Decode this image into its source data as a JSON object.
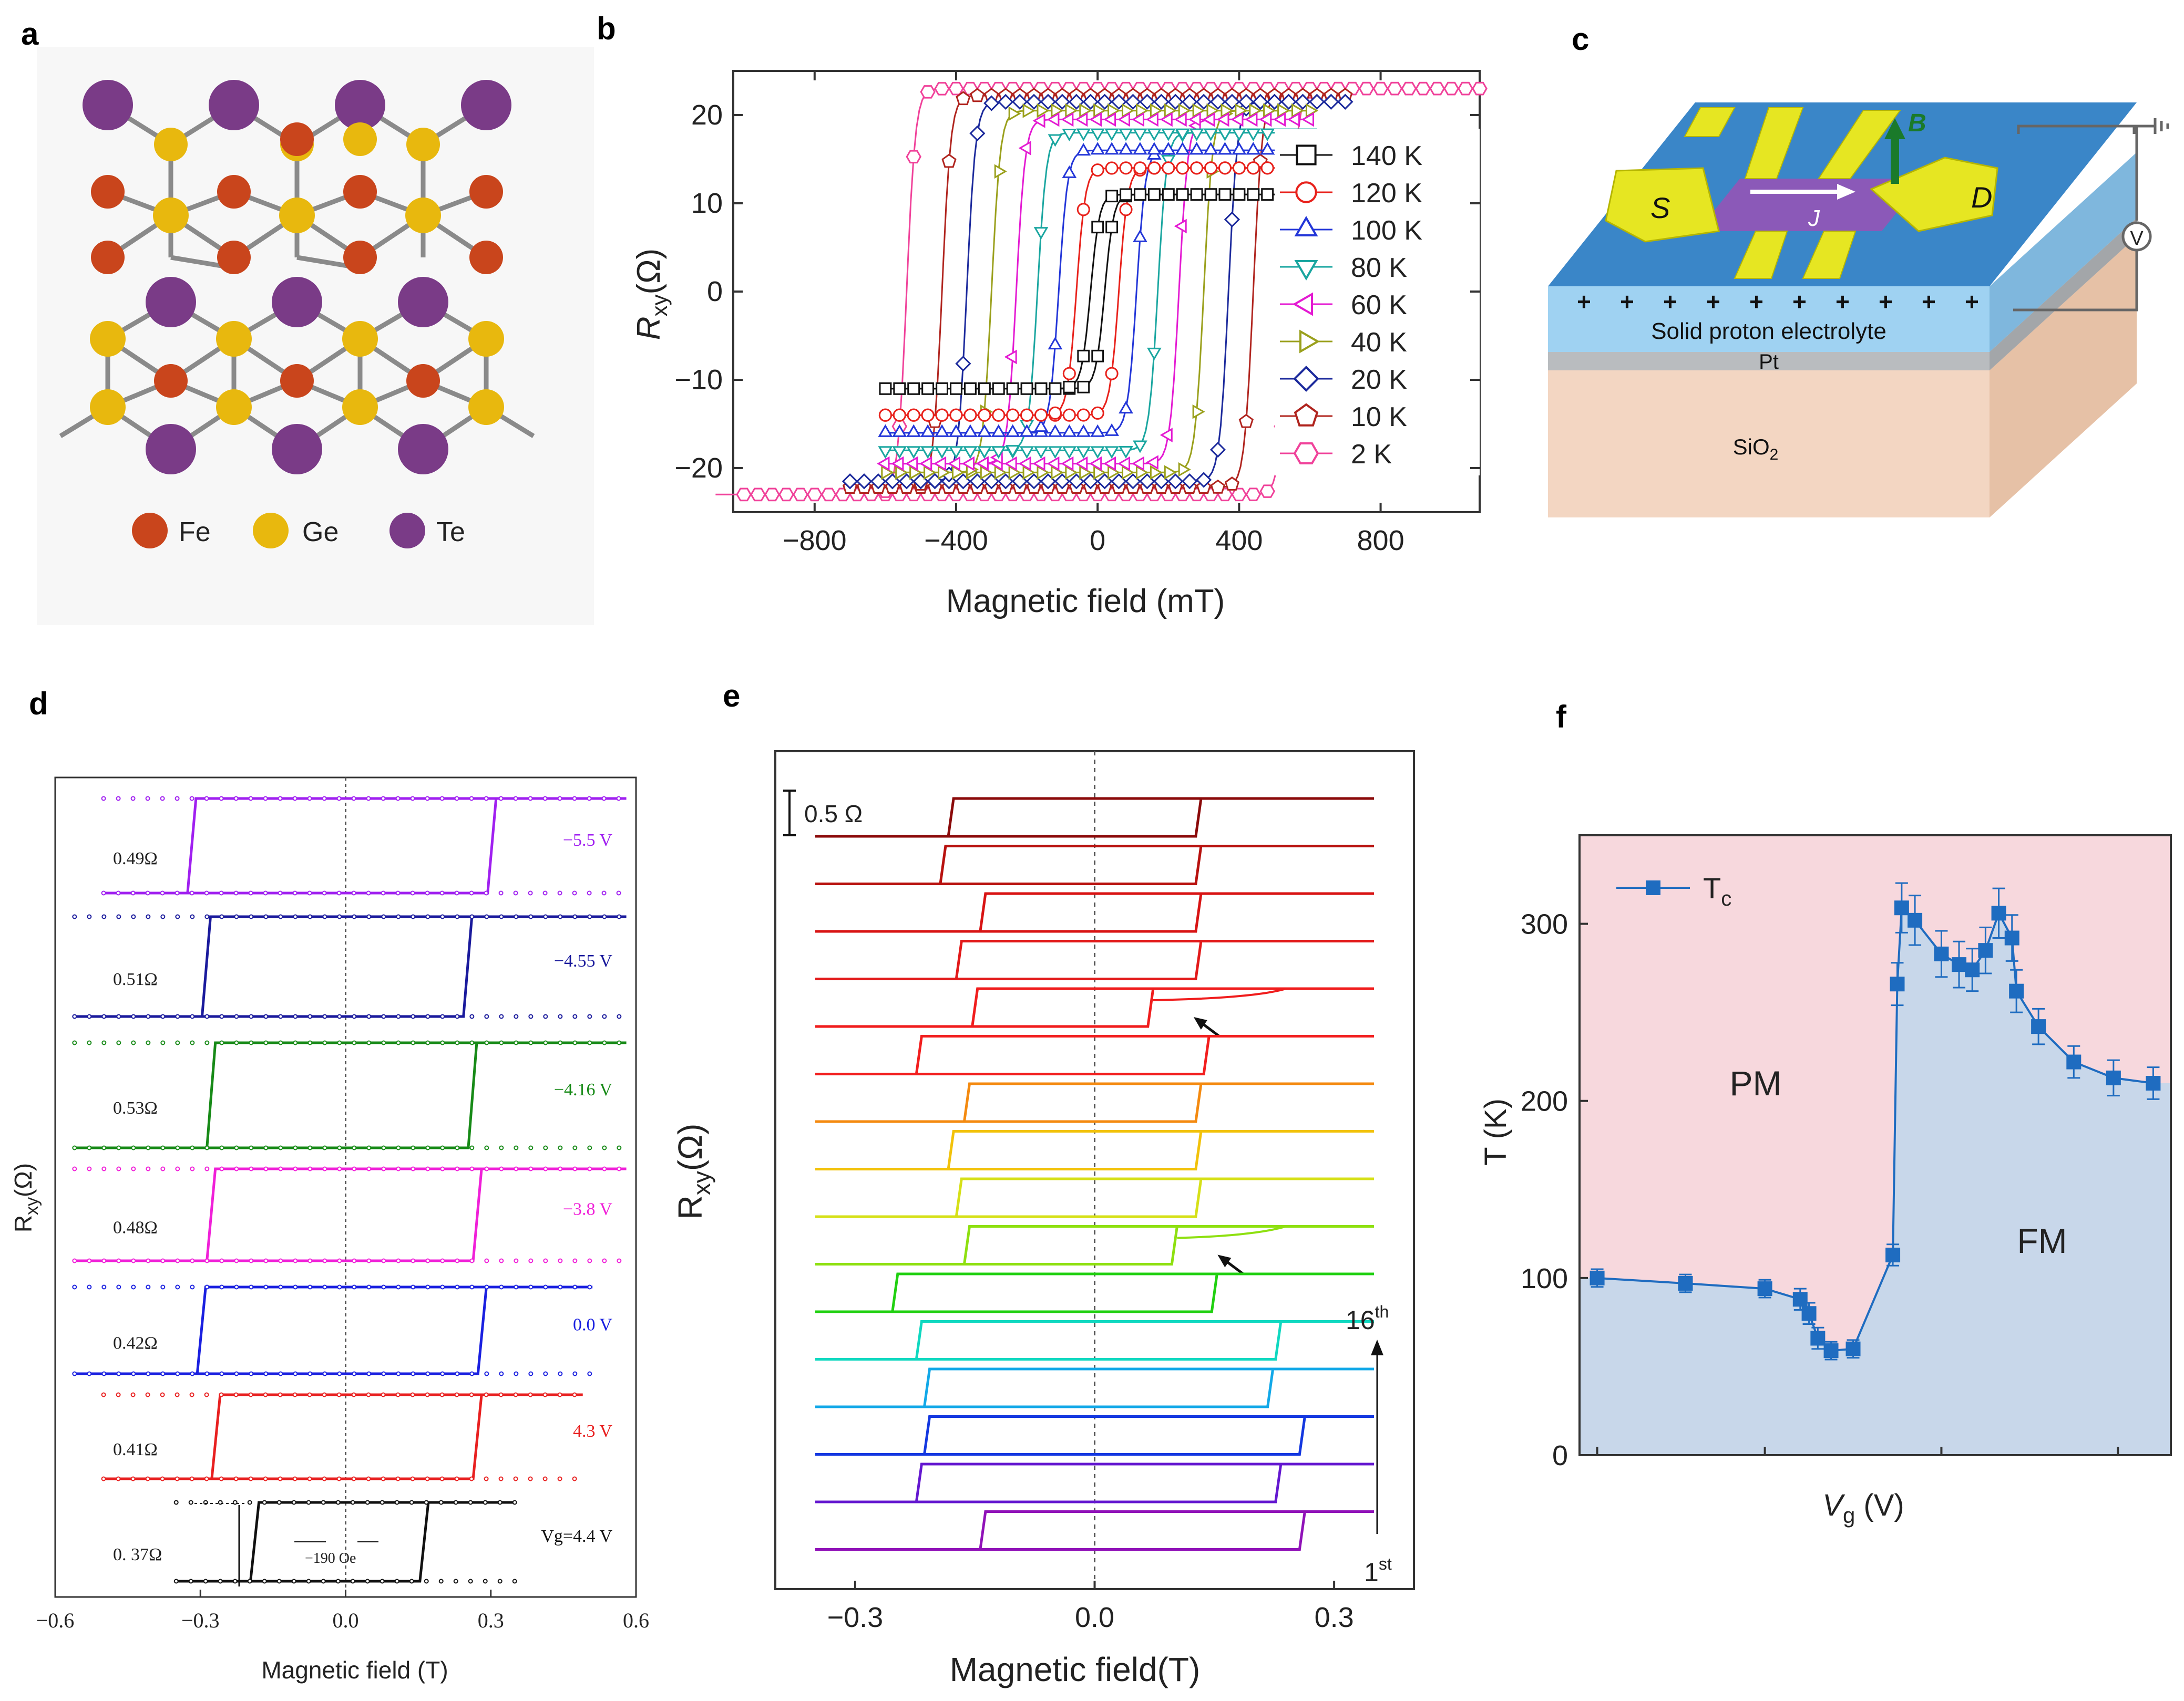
{
  "panels": {
    "a": {
      "letter": "a",
      "legend": [
        {
          "label": "Fe",
          "color": "#c9451c"
        },
        {
          "label": "Ge",
          "color": "#e8b80e"
        },
        {
          "label": "Te",
          "color": "#7a3b87"
        }
      ]
    },
    "c": {
      "letter": "c",
      "labels": {
        "source": "S",
        "drain": "D",
        "field": "B",
        "current": "J",
        "voltmeter": "V",
        "electrolyte": "Solid proton electrolyte",
        "pt": "Pt",
        "substrate": "SiO",
        "substrate_sub": "2"
      }
    }
  },
  "chart_data": [
    {
      "panel": "b",
      "letter": "b",
      "type": "line",
      "title": "",
      "xlabel": "Magnetic field (mT)",
      "ylabel_main": "R",
      "ylabel_sub": "xy",
      "ylabel_unit": "(Ω)",
      "xlim": [
        -1030,
        1080
      ],
      "ylim": [
        -25,
        25
      ],
      "xticks": [
        -800,
        -400,
        0,
        400,
        800
      ],
      "xtick_labels": [
        "−800",
        "−400",
        "0",
        "400",
        "800"
      ],
      "yticks": [
        -20,
        -10,
        0,
        10,
        20
      ],
      "ytick_labels": [
        "−20",
        "−10",
        "0",
        "10",
        "20"
      ],
      "series": [
        {
          "name": "140 K",
          "color": "#111111",
          "marker": "square",
          "sat": 11.0,
          "coercive": 20,
          "xmax": 600
        },
        {
          "name": "120 K",
          "color": "#e8211b",
          "marker": "circle",
          "sat": 14.0,
          "coercive": 60,
          "xmax": 600
        },
        {
          "name": "100 K",
          "color": "#2336d8",
          "marker": "triangle-up",
          "sat": 16.0,
          "coercive": 110,
          "xmax": 600
        },
        {
          "name": "80 K",
          "color": "#1aa6a0",
          "marker": "triangle-down",
          "sat": 18.0,
          "coercive": 170,
          "xmax": 600
        },
        {
          "name": "60 K",
          "color": "#e41ad2",
          "marker": "triangle-left",
          "sat": 19.5,
          "coercive": 230,
          "xmax": 600
        },
        {
          "name": "40 K",
          "color": "#9aa01c",
          "marker": "triangle-right",
          "sat": 20.5,
          "coercive": 300,
          "xmax": 600
        },
        {
          "name": "20 K",
          "color": "#1c2a9c",
          "marker": "diamond",
          "sat": 21.5,
          "coercive": 370,
          "xmax": 700
        },
        {
          "name": "10 K",
          "color": "#b0241e",
          "marker": "pentagon",
          "sat": 22.2,
          "coercive": 440,
          "xmax": 700
        },
        {
          "name": "2 K",
          "color": "#f0429a",
          "marker": "hexagon",
          "sat": 23.0,
          "coercive": 540,
          "xmax": 1080
        }
      ]
    },
    {
      "panel": "d",
      "letter": "d",
      "type": "line",
      "xlabel": "Magnetic field (T)",
      "ylabel_main": "R",
      "ylabel_sub": "xy",
      "ylabel_unit": "(Ω)",
      "xlim": [
        -0.6,
        0.6
      ],
      "xticks": [
        -0.6,
        -0.3,
        0.0,
        0.3,
        0.6
      ],
      "xtick_labels": [
        "−0.6",
        "−0.3",
        "0.0",
        "0.3",
        "0.6"
      ],
      "series": [
        {
          "voltage": "−5.5 V",
          "amplitude": "0.49Ω",
          "color": "#a020f0",
          "hc_left": -0.32,
          "hc_right": 0.3,
          "xmin": -0.5,
          "xmax": 0.58
        },
        {
          "voltage": "−4.55 V",
          "amplitude": "0.51Ω",
          "color": "#1a1a9c",
          "hc_left": -0.29,
          "hc_right": 0.25,
          "xmin": -0.56,
          "xmax": 0.58
        },
        {
          "voltage": "−4.16 V",
          "amplitude": "0.53Ω",
          "color": "#178a17",
          "hc_left": -0.28,
          "hc_right": 0.26,
          "xmin": -0.56,
          "xmax": 0.58
        },
        {
          "voltage": "−3.8 V",
          "amplitude": "0.48Ω",
          "color": "#f020d8",
          "hc_left": -0.28,
          "hc_right": 0.27,
          "xmin": -0.56,
          "xmax": 0.58
        },
        {
          "voltage": "0.0 V",
          "amplitude": "0.42Ω",
          "color": "#1a20e0",
          "hc_left": -0.3,
          "hc_right": 0.28,
          "xmin": -0.56,
          "xmax": 0.51
        },
        {
          "voltage": "4.3 V",
          "amplitude": "0.41Ω",
          "color": "#e82020",
          "hc_left": -0.27,
          "hc_right": 0.27,
          "xmin": -0.5,
          "xmax": 0.49
        },
        {
          "voltage": "Vg=4.4 V",
          "amplitude": "0. 37Ω",
          "color": "#111111",
          "hc_left": -0.19,
          "hc_right": 0.16,
          "xmin": -0.35,
          "xmax": 0.35
        }
      ],
      "annotation": "−190 Oe"
    },
    {
      "panel": "e",
      "letter": "e",
      "type": "line",
      "xlabel": "Magnetic field(T)",
      "ylabel_main": "R",
      "ylabel_sub": "xy",
      "ylabel_unit": "(Ω)",
      "xlim": [
        -0.4,
        0.4
      ],
      "xticks": [
        -0.3,
        0.0,
        0.3
      ],
      "xtick_labels": [
        "−0.3",
        "0.0",
        "0.3"
      ],
      "scale_bar": "0.5 Ω",
      "arrow_label_top": "16",
      "arrow_label_top_sup": "th",
      "arrow_label_bottom": "1",
      "arrow_label_bottom_sup": "st",
      "series": [
        {
          "cycle": 16,
          "color": "#8b0a0a",
          "hc_left": -0.18,
          "hc_right": 0.13,
          "bump": false
        },
        {
          "cycle": 15,
          "color": "#b8120f",
          "hc_left": -0.19,
          "hc_right": 0.13,
          "bump": false
        },
        {
          "cycle": 14,
          "color": "#d81414",
          "hc_left": -0.14,
          "hc_right": 0.13,
          "bump": false
        },
        {
          "cycle": 13,
          "color": "#e21a1a",
          "hc_left": -0.17,
          "hc_right": 0.13,
          "bump": false
        },
        {
          "cycle": 12,
          "color": "#f01d1d",
          "hc_left": -0.15,
          "hc_right": 0.07,
          "bump": true
        },
        {
          "cycle": 11,
          "color": "#f21e1e",
          "hc_left": -0.22,
          "hc_right": 0.14,
          "bump": false
        },
        {
          "cycle": 10,
          "color": "#f48a10",
          "hc_left": -0.16,
          "hc_right": 0.13,
          "bump": false
        },
        {
          "cycle": 9,
          "color": "#f2c20a",
          "hc_left": -0.18,
          "hc_right": 0.13,
          "bump": false
        },
        {
          "cycle": 8,
          "color": "#d6e018",
          "hc_left": -0.17,
          "hc_right": 0.13,
          "bump": false
        },
        {
          "cycle": 7,
          "color": "#8ee010",
          "hc_left": -0.16,
          "hc_right": 0.1,
          "bump": true
        },
        {
          "cycle": 6,
          "color": "#20d010",
          "hc_left": -0.25,
          "hc_right": 0.15,
          "bump": false
        },
        {
          "cycle": 5,
          "color": "#10d8c0",
          "hc_left": -0.22,
          "hc_right": 0.23,
          "bump": false
        },
        {
          "cycle": 4,
          "color": "#12a8e8",
          "hc_left": -0.21,
          "hc_right": 0.22,
          "bump": false
        },
        {
          "cycle": 3,
          "color": "#1438e0",
          "hc_left": -0.21,
          "hc_right": 0.26,
          "bump": false
        },
        {
          "cycle": 2,
          "color": "#6418d0",
          "hc_left": -0.22,
          "hc_right": 0.23,
          "bump": false
        },
        {
          "cycle": 1,
          "color": "#9012b8",
          "hc_left": -0.14,
          "hc_right": 0.26,
          "bump": false
        }
      ]
    },
    {
      "panel": "f",
      "letter": "f",
      "type": "line",
      "xlabel_main": "V",
      "xlabel_sub": "g",
      "xlabel_unit": " (V)",
      "ylabel": "T (K)",
      "ylim": [
        0,
        350
      ],
      "yticks": [
        0,
        100,
        200,
        300
      ],
      "ytick_labels": [
        "0",
        "100",
        "200",
        "300"
      ],
      "legend": "T",
      "legend_sub": "c",
      "region_labels": {
        "pm": "PM",
        "fm": "FM"
      },
      "colors": {
        "pm_bg": "#f7d8dd",
        "fm_bg": "#c8d7ea",
        "line": "#1f6cc0"
      },
      "points": [
        {
          "x": 0.2,
          "y": 100,
          "err": 5
        },
        {
          "x": 2.2,
          "y": 97,
          "err": 5
        },
        {
          "x": 4.0,
          "y": 94,
          "err": 5
        },
        {
          "x": 4.8,
          "y": 88,
          "err": 6
        },
        {
          "x": 5.0,
          "y": 80,
          "err": 6
        },
        {
          "x": 5.2,
          "y": 66,
          "err": 6
        },
        {
          "x": 5.5,
          "y": 59,
          "err": 5
        },
        {
          "x": 6.0,
          "y": 60,
          "err": 5
        },
        {
          "x": 6.9,
          "y": 113,
          "err": 6
        },
        {
          "x": 7.0,
          "y": 266,
          "err": 12
        },
        {
          "x": 7.1,
          "y": 309,
          "err": 14
        },
        {
          "x": 7.4,
          "y": 302,
          "err": 14
        },
        {
          "x": 8.0,
          "y": 283,
          "err": 13
        },
        {
          "x": 8.4,
          "y": 277,
          "err": 13
        },
        {
          "x": 8.7,
          "y": 274,
          "err": 12
        },
        {
          "x": 9.0,
          "y": 285,
          "err": 13
        },
        {
          "x": 9.3,
          "y": 306,
          "err": 14
        },
        {
          "x": 9.6,
          "y": 292,
          "err": 13
        },
        {
          "x": 9.7,
          "y": 262,
          "err": 12
        },
        {
          "x": 10.2,
          "y": 242,
          "err": 10
        },
        {
          "x": 11.0,
          "y": 222,
          "err": 9
        },
        {
          "x": 11.9,
          "y": 213,
          "err": 10
        },
        {
          "x": 12.8,
          "y": 210,
          "err": 9
        }
      ],
      "xlim": [
        -0.2,
        13.2
      ],
      "xticks_positions": [
        0.2,
        4.0,
        8.0,
        12.0
      ]
    }
  ]
}
